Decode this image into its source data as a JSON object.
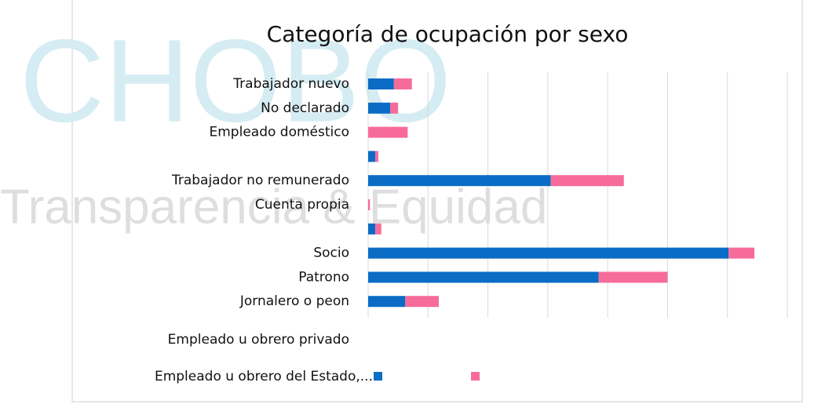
{
  "chart_data": {
    "type": "stacked_barh",
    "title": "Categoría de ocupación por sexo",
    "watermark": [
      "CHOBO",
      "Transparencia & Equidad"
    ],
    "categories": [
      "Trabajador nuevo",
      "No declarado",
      "Empleado doméstico",
      null,
      "Trabajador no remunerado",
      "Cuenta propia",
      null,
      "Socio",
      "Patrono",
      "Jornalero o peon"
    ],
    "extra_labels": [
      "Empleado u obrero privado",
      "Empleado u obrero del Estado,..."
    ],
    "series": [
      {
        "color": "#0a6cc4",
        "values": [
          0.43,
          0.37,
          0,
          0.12,
          3.05,
          0,
          0.12,
          6.02,
          3.85,
          0.62
        ]
      },
      {
        "color": "#f76b9b",
        "values": [
          0.3,
          0.13,
          0.66,
          0.05,
          1.22,
          0.03,
          0.1,
          0.43,
          1.15,
          0.56
        ]
      }
    ],
    "xlim": [
      0,
      7
    ],
    "xticks": [
      0,
      1,
      2,
      3,
      4,
      5,
      6,
      7
    ],
    "tick_labels": false,
    "grid": true
  }
}
